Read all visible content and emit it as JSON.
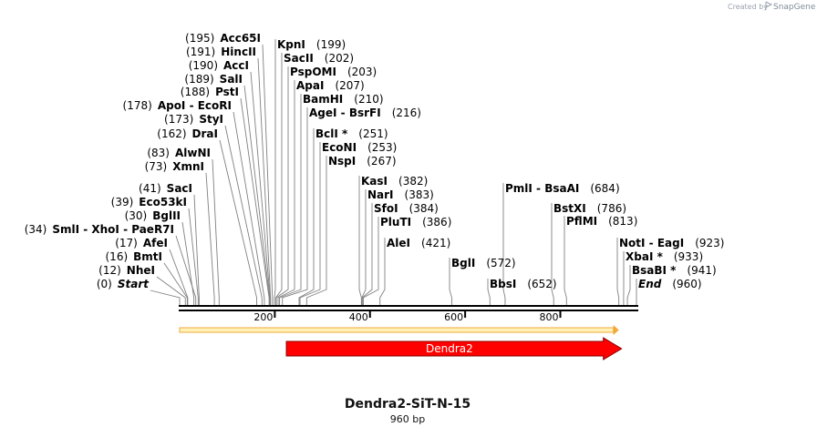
{
  "branding": {
    "created_by": "Created by",
    "app_name": "SnapGene"
  },
  "construct": {
    "name": "Dendra2-SiT-N-15",
    "length_label": "960 bp",
    "length_bp": 960
  },
  "axis": {
    "ticks": [
      200,
      400,
      600,
      800
    ]
  },
  "features": [
    {
      "name": "Dendra2",
      "start": 230,
      "end": 923,
      "color": "#ff0000",
      "direction": "forward"
    }
  ],
  "orf": {
    "start": 0,
    "end": 923,
    "color": "#f2a93b"
  },
  "sites": [
    {
      "label": "Start",
      "pos": 0,
      "pos_label": "(0)",
      "italic": true,
      "side": "left"
    },
    {
      "label": "NheI",
      "pos": 12,
      "pos_label": "(12)",
      "side": "left"
    },
    {
      "label": "BmtI",
      "pos": 16,
      "pos_label": "(16)",
      "side": "left"
    },
    {
      "label": "AfeI",
      "pos": 17,
      "pos_label": "(17)",
      "side": "left"
    },
    {
      "label": "BglII",
      "pos": 30,
      "pos_label": "(30)",
      "side": "left"
    },
    {
      "label": "SmlI  -  XhoI  -  PaeR7I",
      "pos": 34,
      "pos_label": "(34)",
      "side": "left"
    },
    {
      "label": "Eco53kI",
      "pos": 39,
      "pos_label": "(39)",
      "side": "left"
    },
    {
      "label": "SacI",
      "pos": 41,
      "pos_label": "(41)",
      "side": "left"
    },
    {
      "label": "XmnI",
      "pos": 73,
      "pos_label": "(73)",
      "side": "left"
    },
    {
      "label": "AlwNI",
      "pos": 83,
      "pos_label": "(83)",
      "side": "left"
    },
    {
      "label": "DraI",
      "pos": 162,
      "pos_label": "(162)",
      "side": "left"
    },
    {
      "label": "StyI",
      "pos": 173,
      "pos_label": "(173)",
      "side": "left"
    },
    {
      "label": "ApoI  -  EcoRI",
      "pos": 178,
      "pos_label": "(178)",
      "side": "left"
    },
    {
      "label": "PstI",
      "pos": 188,
      "pos_label": "(188)",
      "side": "left"
    },
    {
      "label": "SalI",
      "pos": 189,
      "pos_label": "(189)",
      "side": "left"
    },
    {
      "label": "AccI",
      "pos": 190,
      "pos_label": "(190)",
      "side": "left"
    },
    {
      "label": "HincII",
      "pos": 191,
      "pos_label": "(191)",
      "side": "left"
    },
    {
      "label": "Acc65I",
      "pos": 195,
      "pos_label": "(195)",
      "side": "left"
    },
    {
      "label": "KpnI",
      "pos": 199,
      "pos_label": "(199)",
      "side": "right"
    },
    {
      "label": "SacII",
      "pos": 202,
      "pos_label": "(202)",
      "side": "right"
    },
    {
      "label": "PspOMI",
      "pos": 203,
      "pos_label": "(203)",
      "side": "right"
    },
    {
      "label": "ApaI",
      "pos": 207,
      "pos_label": "(207)",
      "side": "right"
    },
    {
      "label": "BamHI",
      "pos": 210,
      "pos_label": "(210)",
      "side": "right"
    },
    {
      "label": "AgeI  -  BsrFI",
      "pos": 216,
      "pos_label": "(216)",
      "side": "right"
    },
    {
      "label": "BclI *",
      "pos": 251,
      "pos_label": "(251)",
      "side": "right"
    },
    {
      "label": "EcoNI",
      "pos": 253,
      "pos_label": "(253)",
      "side": "right"
    },
    {
      "label": "NspI",
      "pos": 267,
      "pos_label": "(267)",
      "side": "right"
    },
    {
      "label": "KasI",
      "pos": 382,
      "pos_label": "(382)",
      "side": "right"
    },
    {
      "label": "NarI",
      "pos": 383,
      "pos_label": "(383)",
      "side": "right"
    },
    {
      "label": "SfoI",
      "pos": 384,
      "pos_label": "(384)",
      "side": "right"
    },
    {
      "label": "PluTI",
      "pos": 386,
      "pos_label": "(386)",
      "side": "right"
    },
    {
      "label": "AleI",
      "pos": 421,
      "pos_label": "(421)",
      "side": "right"
    },
    {
      "label": "BglI",
      "pos": 572,
      "pos_label": "(572)",
      "side": "right"
    },
    {
      "label": "BbsI",
      "pos": 652,
      "pos_label": "(652)",
      "side": "right"
    },
    {
      "label": "PmlI  -  BsaAI",
      "pos": 684,
      "pos_label": "(684)",
      "side": "right"
    },
    {
      "label": "BstXI",
      "pos": 786,
      "pos_label": "(786)",
      "side": "right"
    },
    {
      "label": "PflMI",
      "pos": 813,
      "pos_label": "(813)",
      "side": "right"
    },
    {
      "label": "NotI  -  EagI",
      "pos": 923,
      "pos_label": "(923)",
      "side": "right"
    },
    {
      "label": "XbaI *",
      "pos": 933,
      "pos_label": "(933)",
      "side": "right"
    },
    {
      "label": "BsaBI *",
      "pos": 941,
      "pos_label": "(941)",
      "side": "right"
    },
    {
      "label": "End",
      "pos": 960,
      "pos_label": "(960)",
      "italic": true,
      "side": "right"
    }
  ]
}
